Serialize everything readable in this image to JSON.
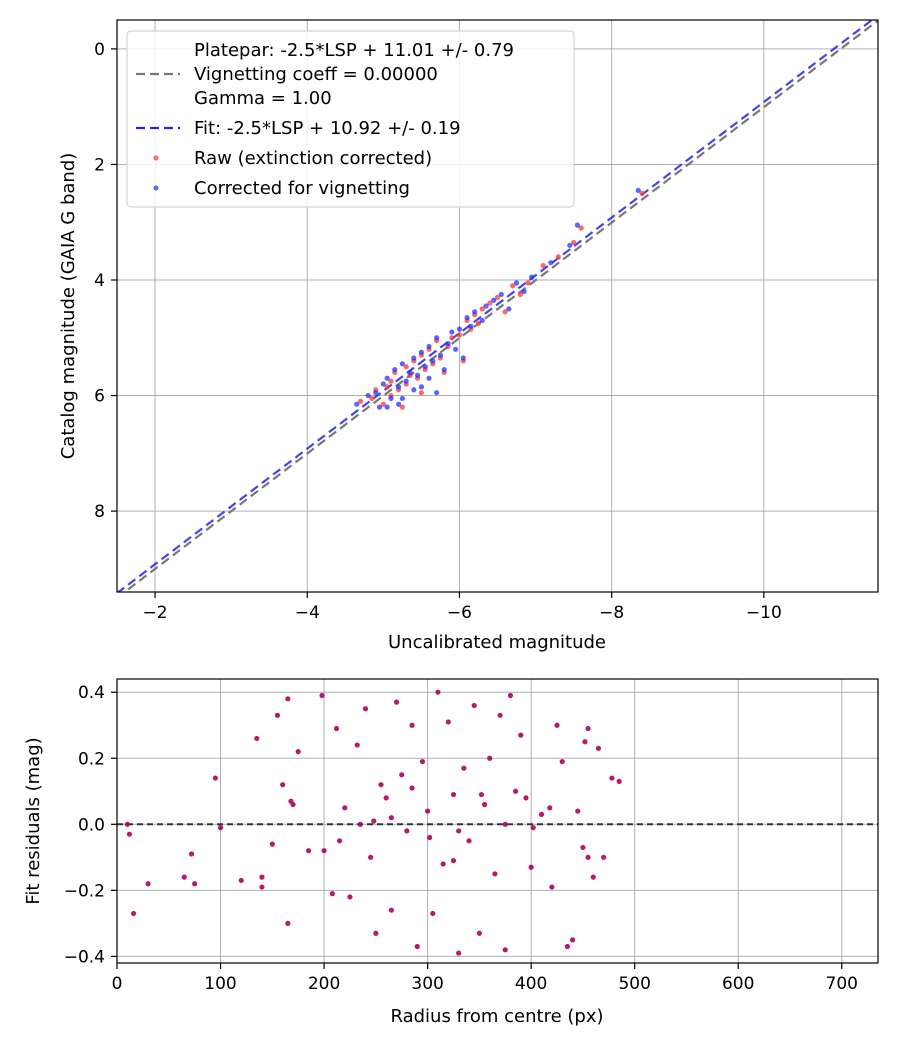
{
  "colors": {
    "raw": "#ff3333",
    "corrected": "#2233ff",
    "residual": "#b0005a",
    "fit_line": "#2222ee",
    "platepar_line": "#777777",
    "zero_line": "#333333"
  },
  "chart_data": [
    {
      "type": "scatter",
      "title": "",
      "xlabel": "Uncalibrated magnitude",
      "ylabel": "Catalog magnitude (GAIA G band)",
      "xlim": [
        -1.5,
        -11.5
      ],
      "ylim": [
        9.4,
        -0.5
      ],
      "x_inverted": true,
      "y_inverted": true,
      "grid": true,
      "xticks": [
        -2,
        -4,
        -6,
        -8,
        -10
      ],
      "xtick_labels": [
        "−2",
        "−4",
        "−6",
        "−8",
        "−10"
      ],
      "yticks": [
        0,
        2,
        4,
        6,
        8
      ],
      "ytick_labels": [
        "0",
        "2",
        "4",
        "6",
        "8"
      ],
      "legend_location": "upper-left",
      "legend": {
        "platepar_lines": [
          "Platepar: -2.5*LSP + 11.01 +/- 0.79",
          "Vignetting coeff = 0.00000",
          "Gamma = 1.00"
        ],
        "fit": "Fit: -2.5*LSP + 10.92 +/- 0.19",
        "raw": "Raw (extinction corrected)",
        "corrected": "Corrected for vignetting"
      },
      "lines": [
        {
          "name": "Platepar",
          "x": [
            -1.5,
            -11.5
          ],
          "y": [
            9.5,
            -0.49
          ],
          "style": "dashed"
        },
        {
          "name": "Fit",
          "x": [
            -1.5,
            -11.5
          ],
          "y": [
            9.42,
            -0.58
          ],
          "style": "dashed"
        }
      ],
      "series": [
        {
          "name": "Raw (extinction corrected)",
          "x": [
            -4.7,
            -4.85,
            -4.9,
            -5.0,
            -5.05,
            -5.1,
            -5.1,
            -5.15,
            -5.2,
            -5.25,
            -5.3,
            -5.3,
            -5.35,
            -5.4,
            -5.45,
            -5.5,
            -5.5,
            -5.55,
            -5.6,
            -5.65,
            -5.7,
            -5.75,
            -5.8,
            -5.85,
            -5.9,
            -6.0,
            -6.05,
            -6.1,
            -6.15,
            -6.2,
            -6.25,
            -6.3,
            -6.4,
            -6.5,
            -6.6,
            -6.7,
            -6.8,
            -6.9,
            -7.1,
            -7.3,
            -7.5,
            -7.6,
            -8.4
          ],
          "y": [
            6.1,
            6.05,
            5.9,
            6.15,
            5.85,
            5.75,
            6.0,
            5.6,
            5.9,
            6.2,
            5.5,
            5.8,
            5.65,
            5.4,
            5.7,
            5.3,
            5.95,
            5.55,
            5.2,
            5.45,
            5.05,
            5.35,
            5.6,
            5.15,
            5.0,
            4.95,
            5.4,
            4.7,
            4.85,
            4.6,
            4.75,
            4.5,
            4.4,
            4.3,
            4.55,
            4.1,
            4.25,
            4.05,
            3.75,
            3.6,
            3.35,
            3.1,
            2.5
          ]
        },
        {
          "name": "Corrected for vignetting",
          "x": [
            -4.65,
            -4.8,
            -4.9,
            -4.95,
            -5.0,
            -5.05,
            -5.1,
            -5.15,
            -5.2,
            -5.2,
            -5.25,
            -5.3,
            -5.35,
            -5.4,
            -5.4,
            -5.45,
            -5.5,
            -5.55,
            -5.6,
            -5.6,
            -5.65,
            -5.7,
            -5.75,
            -5.8,
            -5.85,
            -5.9,
            -5.95,
            -6.0,
            -6.05,
            -6.1,
            -6.15,
            -6.2,
            -6.3,
            -6.35,
            -6.45,
            -6.55,
            -6.65,
            -6.75,
            -6.85,
            -6.95,
            -7.2,
            -7.45,
            -7.55,
            -8.35,
            -5.05,
            -5.25,
            -5.5,
            -5.7
          ],
          "y": [
            6.15,
            6.0,
            5.95,
            6.2,
            5.8,
            5.7,
            6.05,
            5.55,
            5.85,
            6.15,
            5.45,
            5.75,
            5.6,
            5.35,
            5.9,
            5.65,
            5.25,
            5.5,
            5.15,
            5.7,
            5.4,
            5.0,
            5.3,
            5.55,
            5.1,
            4.9,
            5.2,
            4.85,
            5.35,
            4.65,
            4.8,
            4.55,
            4.7,
            4.45,
            4.35,
            4.25,
            4.5,
            4.05,
            4.2,
            3.95,
            3.7,
            3.4,
            3.05,
            2.45,
            6.2,
            6.05,
            5.85,
            5.95
          ]
        }
      ]
    },
    {
      "type": "scatter",
      "title": "",
      "xlabel": "Radius from centre (px)",
      "ylabel": "Fit residuals (mag)",
      "xlim": [
        0,
        735
      ],
      "ylim": [
        -0.42,
        0.44
      ],
      "grid": true,
      "xticks": [
        0,
        100,
        200,
        300,
        400,
        500,
        600,
        700
      ],
      "xtick_labels": [
        "0",
        "100",
        "200",
        "300",
        "400",
        "500",
        "600",
        "700"
      ],
      "yticks": [
        0.4,
        0.2,
        0.0,
        -0.2,
        -0.4
      ],
      "ytick_labels": [
        "0.4",
        "0.2",
        "0.0",
        "−0.2",
        "−0.4"
      ],
      "zero_line": 0.0,
      "series": [
        {
          "name": "Residuals",
          "x": [
            10,
            12,
            16,
            30,
            65,
            72,
            75,
            95,
            100,
            120,
            135,
            140,
            155,
            160,
            165,
            168,
            175,
            185,
            198,
            208,
            212,
            220,
            225,
            232,
            240,
            245,
            250,
            255,
            260,
            265,
            270,
            275,
            280,
            285,
            290,
            295,
            300,
            305,
            310,
            315,
            320,
            325,
            330,
            335,
            340,
            345,
            350,
            355,
            360,
            365,
            370,
            375,
            380,
            385,
            390,
            400,
            410,
            420,
            425,
            430,
            435,
            440,
            445,
            450,
            455,
            460,
            465,
            470,
            478,
            485,
            150,
            170,
            215,
            265,
            330,
            395,
            455,
            140,
            200,
            248,
            302,
            352,
            402,
            452,
            165,
            235,
            285,
            325,
            375,
            418
          ],
          "y": [
            0.0,
            -0.03,
            -0.27,
            -0.18,
            -0.16,
            -0.09,
            -0.18,
            0.14,
            -0.01,
            -0.17,
            0.26,
            -0.16,
            0.33,
            0.12,
            0.38,
            0.07,
            0.22,
            -0.08,
            0.39,
            -0.21,
            0.29,
            0.05,
            -0.22,
            0.24,
            0.35,
            -0.1,
            -0.33,
            0.12,
            0.08,
            -0.26,
            0.37,
            0.15,
            -0.02,
            0.3,
            -0.37,
            0.19,
            0.04,
            -0.27,
            0.4,
            -0.12,
            0.31,
            0.09,
            -0.39,
            0.17,
            -0.05,
            0.36,
            -0.33,
            0.06,
            0.2,
            -0.15,
            0.33,
            -0.38,
            0.39,
            0.1,
            0.27,
            -0.13,
            0.03,
            -0.19,
            0.3,
            0.19,
            -0.37,
            -0.35,
            0.04,
            -0.07,
            0.29,
            -0.16,
            0.23,
            -0.1,
            0.14,
            0.13,
            -0.06,
            0.06,
            -0.05,
            0.02,
            -0.02,
            0.08,
            -0.1,
            -0.19,
            -0.08,
            0.01,
            -0.04,
            0.09,
            -0.01,
            0.25,
            -0.3,
            0.0,
            0.11,
            -0.11,
            0.0,
            0.05
          ]
        }
      ]
    }
  ]
}
